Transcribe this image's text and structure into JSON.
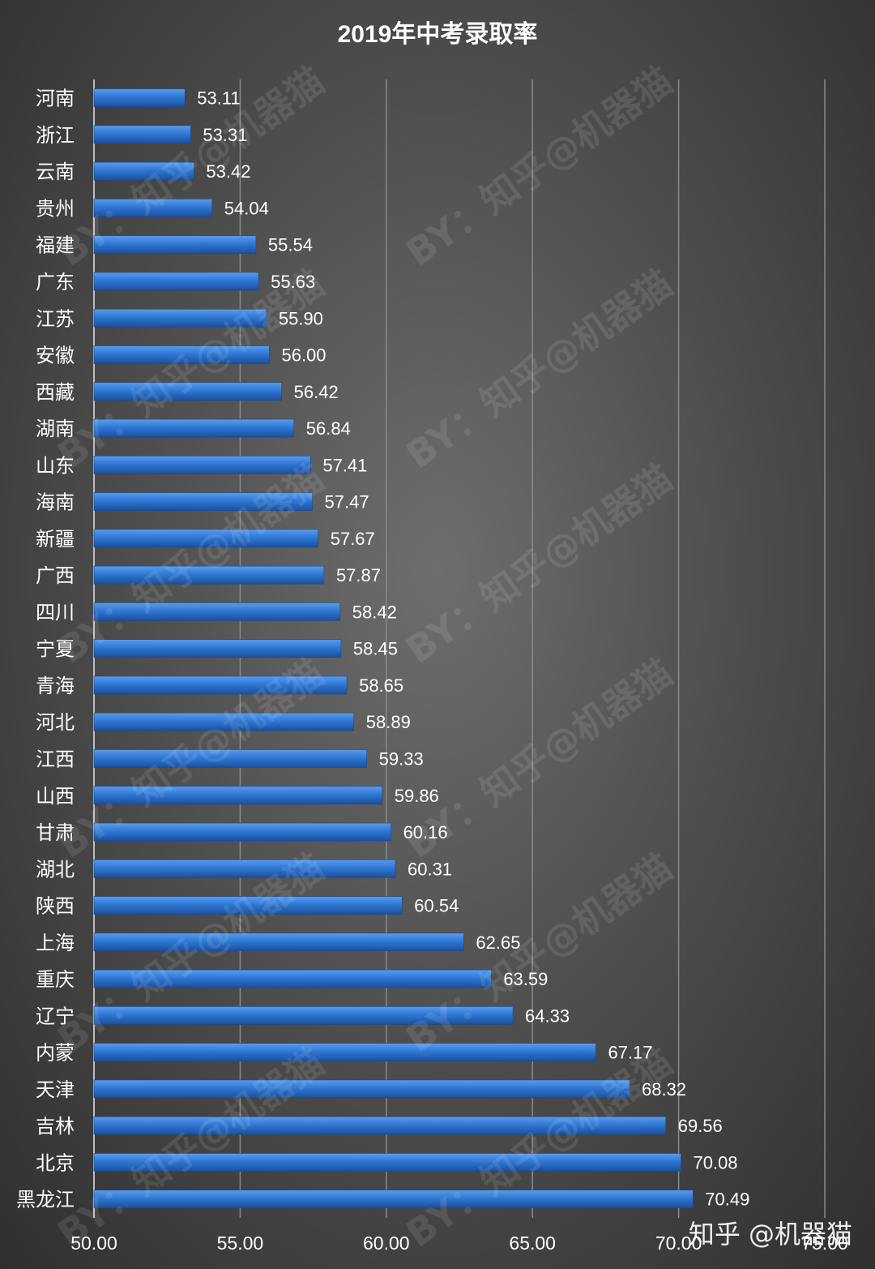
{
  "watermark": "BY：知乎@机器猫",
  "corner_watermark": "知乎 @机器猫",
  "colors": {
    "bar": "#2f78d4",
    "bar_light": "#5a9cec",
    "bar_dark": "#1c4f9c",
    "text": "#ffffff",
    "grid": "#8a8a8a"
  },
  "chart_data": {
    "type": "bar",
    "orientation": "horizontal",
    "title": "2019年中考录取率",
    "xlabel": "",
    "ylabel": "",
    "xlim": [
      50,
      75
    ],
    "x_ticks": [
      "50.00",
      "55.00",
      "60.00",
      "65.00",
      "70.00",
      "75.00"
    ],
    "grid": true,
    "legend": "none",
    "categories": [
      "河南",
      "浙江",
      "云南",
      "贵州",
      "福建",
      "广东",
      "江苏",
      "安徽",
      "西藏",
      "湖南",
      "山东",
      "海南",
      "新疆",
      "广西",
      "四川",
      "宁夏",
      "青海",
      "河北",
      "江西",
      "山西",
      "甘肃",
      "湖北",
      "陕西",
      "上海",
      "重庆",
      "辽宁",
      "内蒙",
      "天津",
      "吉林",
      "北京",
      "黑龙江"
    ],
    "values": [
      53.11,
      53.31,
      53.42,
      54.04,
      55.54,
      55.63,
      55.9,
      56.0,
      56.42,
      56.84,
      57.41,
      57.47,
      57.67,
      57.87,
      58.42,
      58.45,
      58.65,
      58.89,
      59.33,
      59.86,
      60.16,
      60.31,
      60.54,
      62.65,
      63.59,
      64.33,
      67.17,
      68.32,
      69.56,
      70.08,
      70.49
    ],
    "value_labels": [
      "53.11",
      "53.31",
      "53.42",
      "54.04",
      "55.54",
      "55.63",
      "55.90",
      "56.00",
      "56.42",
      "56.84",
      "57.41",
      "57.47",
      "57.67",
      "57.87",
      "58.42",
      "58.45",
      "58.65",
      "58.89",
      "59.33",
      "59.86",
      "60.16",
      "60.31",
      "60.54",
      "62.65",
      "63.59",
      "64.33",
      "67.17",
      "68.32",
      "69.56",
      "70.08",
      "70.49"
    ]
  }
}
